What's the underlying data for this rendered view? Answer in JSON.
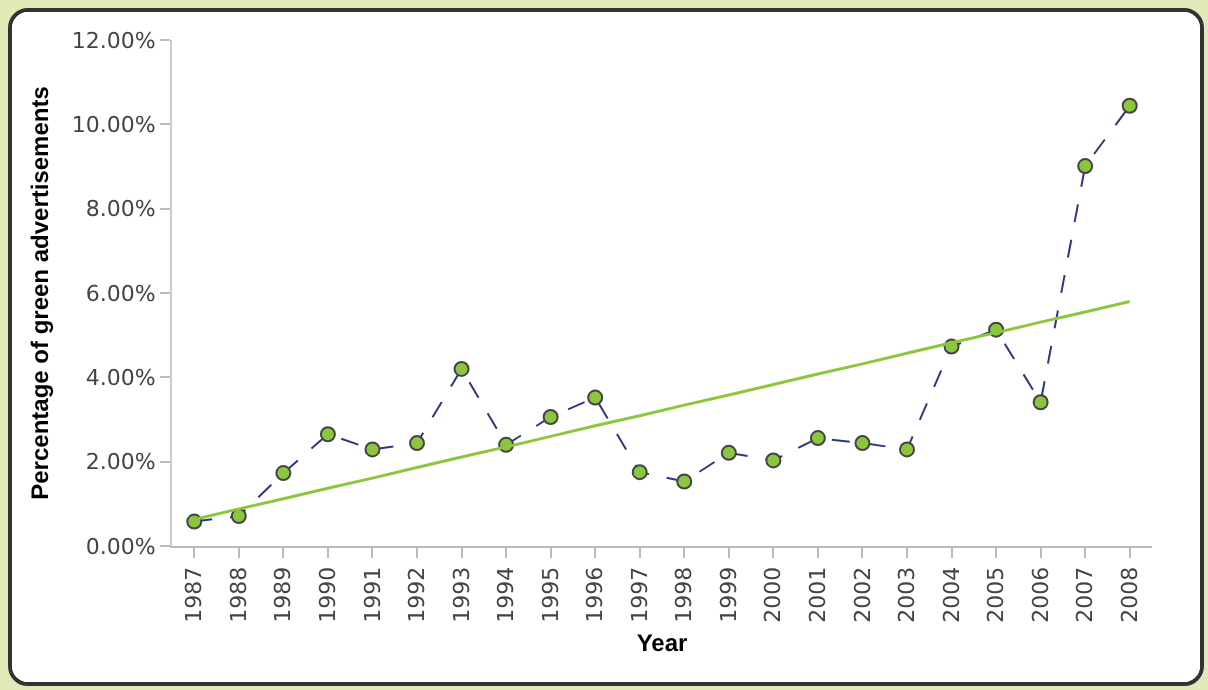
{
  "chart_data": {
    "type": "line",
    "xlabel": "Year",
    "ylabel": "Percentage of green advertisements",
    "categories": [
      "1987",
      "1988",
      "1989",
      "1990",
      "1991",
      "1992",
      "1993",
      "1994",
      "1995",
      "1996",
      "1997",
      "1998",
      "1999",
      "2000",
      "2001",
      "2002",
      "2003",
      "2004",
      "2005",
      "2006",
      "2007",
      "2008"
    ],
    "series": [
      {
        "color": "#2e3585",
        "marker": "circle",
        "line_style": "dashed",
        "values": [
          0.58,
          0.71,
          1.73,
          2.65,
          2.29,
          2.44,
          4.2,
          2.4,
          3.06,
          3.52,
          1.75,
          1.53,
          2.21,
          2.03,
          2.56,
          2.44,
          2.29,
          4.73,
          5.13,
          3.41,
          9.01,
          10.44
        ]
      },
      {
        "type": "line",
        "color": "#8cc63f",
        "line_style": "solid",
        "values": [
          0.63,
          0.88,
          1.12,
          1.37,
          1.61,
          1.86,
          2.11,
          2.35,
          2.6,
          2.85,
          3.09,
          3.34,
          3.58,
          3.83,
          4.08,
          4.32,
          4.57,
          4.82,
          5.06,
          5.31,
          5.55,
          5.8
        ]
      }
    ],
    "ylim": [
      0,
      12
    ],
    "yticks": [
      {
        "value": 0,
        "label": "0.00%"
      },
      {
        "value": 2,
        "label": "2.00%"
      },
      {
        "value": 4,
        "label": "4.00%"
      },
      {
        "value": 6,
        "label": "6.00%"
      },
      {
        "value": 8,
        "label": "8.00%"
      },
      {
        "value": 10,
        "label": "10.00%"
      },
      {
        "value": 12,
        "label": "12.00%"
      }
    ],
    "grid": false
  }
}
